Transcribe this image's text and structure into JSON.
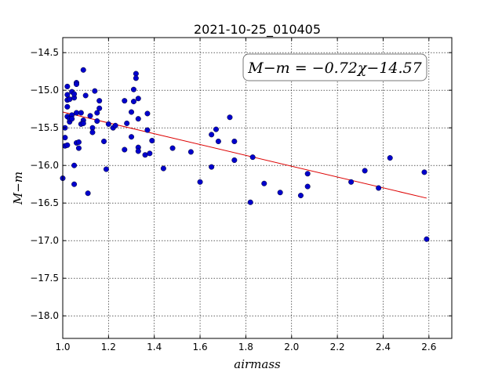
{
  "chart_data": {
    "type": "scatter",
    "title": "2021-10-25_010405",
    "xlabel": "airmass",
    "ylabel": "M−m",
    "xlim": [
      1.0,
      2.7
    ],
    "ylim": [
      -18.3,
      -14.3
    ],
    "y_inverted": true,
    "xticks": [
      1.0,
      1.2,
      1.4,
      1.6,
      1.8,
      2.0,
      2.2,
      2.4,
      2.6
    ],
    "xtick_labels": [
      "1.0",
      "1.2",
      "1.4",
      "1.6",
      "1.8",
      "2.0",
      "2.2",
      "2.4",
      "2.6"
    ],
    "yticks": [
      -14.5,
      -15.0,
      -15.5,
      -16.0,
      -16.5,
      -17.0,
      -17.5,
      -18.0
    ],
    "ytick_labels": [
      "−14.5",
      "−15.0",
      "−15.5",
      "−16.0",
      "−16.5",
      "−17.0",
      "−17.5",
      "−18.0"
    ],
    "grid": true,
    "annotation": "M−m = −0.72χ−14.57",
    "colors": {
      "points": "#0000cc",
      "fit": "#dd0000"
    },
    "fit_line": {
      "slope": -0.72,
      "intercept": -14.57,
      "x_range": [
        1.0,
        2.59
      ]
    },
    "points": [
      [
        1.0,
        -16.17
      ],
      [
        1.01,
        -15.74
      ],
      [
        1.01,
        -15.5
      ],
      [
        1.01,
        -15.63
      ],
      [
        1.02,
        -14.95
      ],
      [
        1.02,
        -15.06
      ],
      [
        1.02,
        -15.13
      ],
      [
        1.02,
        -15.22
      ],
      [
        1.02,
        -15.35
      ],
      [
        1.02,
        -15.73
      ],
      [
        1.03,
        -15.42
      ],
      [
        1.03,
        -15.38
      ],
      [
        1.03,
        -15.12
      ],
      [
        1.04,
        -15.02
      ],
      [
        1.04,
        -15.33
      ],
      [
        1.04,
        -15.38
      ],
      [
        1.05,
        -15.1
      ],
      [
        1.05,
        -16.0
      ],
      [
        1.05,
        -16.25
      ],
      [
        1.05,
        -15.05
      ],
      [
        1.06,
        -15.3
      ],
      [
        1.06,
        -15.7
      ],
      [
        1.06,
        -14.9
      ],
      [
        1.06,
        -14.92
      ],
      [
        1.07,
        -15.69
      ],
      [
        1.07,
        -15.77
      ],
      [
        1.08,
        -15.45
      ],
      [
        1.08,
        -15.3
      ],
      [
        1.09,
        -14.73
      ],
      [
        1.09,
        -15.4
      ],
      [
        1.09,
        -15.44
      ],
      [
        1.1,
        -15.07
      ],
      [
        1.11,
        -16.37
      ],
      [
        1.12,
        -15.34
      ],
      [
        1.13,
        -15.5
      ],
      [
        1.13,
        -15.56
      ],
      [
        1.14,
        -15.01
      ],
      [
        1.15,
        -15.41
      ],
      [
        1.15,
        -15.3
      ],
      [
        1.16,
        -15.24
      ],
      [
        1.16,
        -15.14
      ],
      [
        1.18,
        -15.68
      ],
      [
        1.19,
        -16.05
      ],
      [
        1.2,
        -15.45
      ],
      [
        1.22,
        -15.5
      ],
      [
        1.23,
        -15.47
      ],
      [
        1.27,
        -15.79
      ],
      [
        1.27,
        -15.14
      ],
      [
        1.28,
        -15.44
      ],
      [
        1.3,
        -15.29
      ],
      [
        1.3,
        -15.62
      ],
      [
        1.31,
        -15.15
      ],
      [
        1.31,
        -14.99
      ],
      [
        1.32,
        -14.78
      ],
      [
        1.32,
        -14.84
      ],
      [
        1.33,
        -15.11
      ],
      [
        1.33,
        -15.38
      ],
      [
        1.33,
        -15.76
      ],
      [
        1.33,
        -15.81
      ],
      [
        1.36,
        -15.86
      ],
      [
        1.37,
        -15.31
      ],
      [
        1.37,
        -15.53
      ],
      [
        1.38,
        -15.84
      ],
      [
        1.39,
        -15.67
      ],
      [
        1.44,
        -16.04
      ],
      [
        1.48,
        -15.77
      ],
      [
        1.56,
        -15.82
      ],
      [
        1.6,
        -16.22
      ],
      [
        1.65,
        -16.02
      ],
      [
        1.65,
        -15.59
      ],
      [
        1.67,
        -15.52
      ],
      [
        1.68,
        -15.68
      ],
      [
        1.73,
        -15.36
      ],
      [
        1.75,
        -15.68
      ],
      [
        1.75,
        -15.93
      ],
      [
        1.82,
        -16.49
      ],
      [
        1.83,
        -15.89
      ],
      [
        1.88,
        -16.24
      ],
      [
        1.95,
        -16.36
      ],
      [
        2.04,
        -16.4
      ],
      [
        2.07,
        -16.11
      ],
      [
        2.07,
        -16.28
      ],
      [
        2.26,
        -16.22
      ],
      [
        2.32,
        -16.07
      ],
      [
        2.38,
        -16.3
      ],
      [
        2.43,
        -15.9
      ],
      [
        2.58,
        -16.09
      ],
      [
        2.59,
        -16.98
      ]
    ]
  }
}
